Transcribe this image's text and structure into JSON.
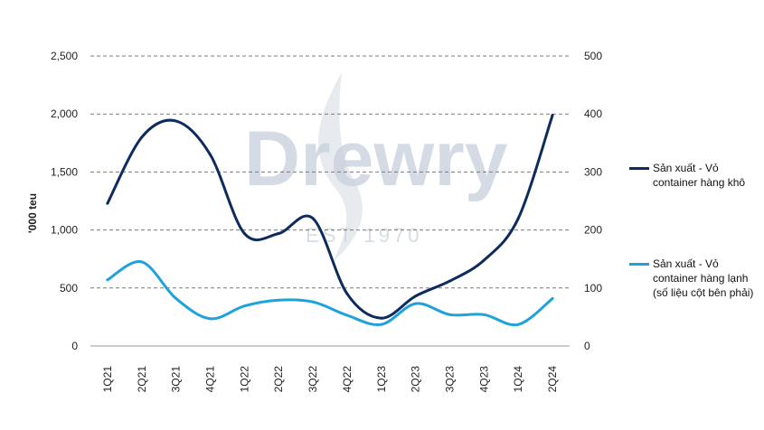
{
  "chart_data": {
    "type": "line",
    "title": "",
    "ylabel": "'000 teu",
    "y2label": "",
    "ylim": [
      0,
      2500
    ],
    "y2lim": [
      0,
      500
    ],
    "yticks": [
      "0",
      "500",
      "1,000",
      "1,500",
      "2,000",
      "2,500"
    ],
    "y2ticks": [
      "0",
      "100",
      "200",
      "300",
      "400",
      "500"
    ],
    "grid": true,
    "legend_position": "right",
    "categories": [
      "1Q21",
      "2Q21",
      "3Q21",
      "4Q21",
      "1Q22",
      "2Q22",
      "3Q22",
      "4Q22",
      "1Q23",
      "2Q23",
      "3Q23",
      "4Q23",
      "1Q24",
      "2Q24"
    ],
    "series": [
      {
        "name": "Sản xuất - Vỏ container hàng khô",
        "axis": "left",
        "color": "#0d2b5e",
        "values": [
          1230,
          1800,
          1940,
          1650,
          970,
          970,
          1100,
          450,
          240,
          430,
          560,
          740,
          1100,
          1990
        ]
      },
      {
        "name": "Sản xuất - Vỏ container hàng lạnh (số liệu cột bên phải)",
        "axis": "right",
        "color": "#1ea2dc",
        "values": [
          114,
          145,
          82,
          47,
          69,
          79,
          76,
          53,
          37,
          73,
          54,
          54,
          37,
          82
        ]
      }
    ]
  },
  "watermark": {
    "brand": "Drewry",
    "tagline": "EST 1970"
  },
  "legend": [
    {
      "label": "Sản xuất - Vỏ container hàng khô",
      "color": "#0d2b5e"
    },
    {
      "label": "Sản xuất - Vỏ container hàng lạnh (số liệu cột bên phải)",
      "color": "#1ea2dc"
    }
  ]
}
